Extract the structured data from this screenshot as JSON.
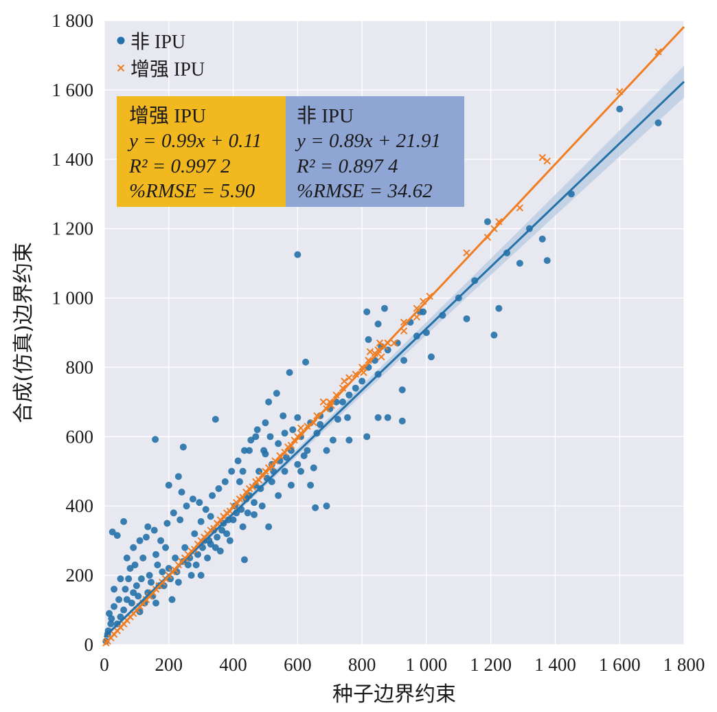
{
  "chart_data": {
    "type": "scatter",
    "xlabel": "种子边界约束",
    "ylabel": "合成(仿真)边界约束",
    "xlim": [
      0,
      1800
    ],
    "ylim": [
      0,
      1800
    ],
    "xticks": [
      0,
      200,
      400,
      600,
      800,
      1000,
      1200,
      1400,
      1600,
      1800
    ],
    "yticks": [
      0,
      200,
      400,
      600,
      800,
      1000,
      1200,
      1400,
      1600,
      1800
    ],
    "xtick_labels": [
      "0",
      "200",
      "400",
      "600",
      "800",
      "1 000",
      "1 200",
      "1 400",
      "1 600",
      "1 800"
    ],
    "ytick_labels": [
      "0",
      "200",
      "400",
      "600",
      "800",
      "1 000",
      "1 200",
      "1 400",
      "1 600",
      "1 800"
    ],
    "grid": true,
    "legend_position": "top-left",
    "colors": {
      "blue": "#2471a8",
      "orange": "#ef7d22",
      "background": "#e8e8f0",
      "box_orange": "#f2b81f",
      "box_blue": "#8fa6d4"
    },
    "series": [
      {
        "name": "非 IPU",
        "marker": "circle",
        "color": "#2471a8",
        "fit": {
          "slope": 0.89,
          "intercept": 21.91
        },
        "points": [
          [
            600,
            1125
          ],
          [
            158,
            592
          ],
          [
            345,
            650
          ],
          [
            1600,
            1545
          ],
          [
            1720,
            1505
          ],
          [
            1190,
            1220
          ],
          [
            1360,
            1170
          ],
          [
            1375,
            1108
          ],
          [
            1290,
            1100
          ],
          [
            1225,
            970
          ],
          [
            1125,
            940
          ],
          [
            1210,
            893
          ],
          [
            990,
            960
          ],
          [
            1015,
            830
          ],
          [
            970,
            890
          ],
          [
            930,
            820
          ],
          [
            870,
            970
          ],
          [
            815,
            960
          ],
          [
            820,
            880
          ],
          [
            850,
            925
          ],
          [
            860,
            860
          ],
          [
            925,
            735
          ],
          [
            925,
            645
          ],
          [
            850,
            780
          ],
          [
            850,
            655
          ],
          [
            880,
            655
          ],
          [
            815,
            600
          ],
          [
            755,
            655
          ],
          [
            725,
            650
          ],
          [
            710,
            590
          ],
          [
            690,
            400
          ],
          [
            655,
            395
          ],
          [
            640,
            460
          ],
          [
            620,
            545
          ],
          [
            670,
            635
          ],
          [
            600,
            655
          ],
          [
            610,
            500
          ],
          [
            580,
            460
          ],
          [
            575,
            785
          ],
          [
            625,
            815
          ],
          [
            535,
            725
          ],
          [
            510,
            700
          ],
          [
            450,
            560
          ],
          [
            430,
            500
          ],
          [
            510,
            340
          ],
          [
            465,
            375
          ],
          [
            435,
            245
          ],
          [
            245,
            570
          ],
          [
            230,
            485
          ],
          [
            200,
            460
          ],
          [
            60,
            355
          ],
          [
            25,
            325
          ],
          [
            40,
            315
          ],
          [
            135,
            340
          ],
          [
            240,
            440
          ],
          [
            300,
            355
          ],
          [
            330,
            290
          ],
          [
            360,
            270
          ],
          [
            120,
            250
          ],
          [
            80,
            220
          ],
          [
            180,
            210
          ],
          [
            30,
            160
          ],
          [
            70,
            130
          ],
          [
            100,
            170
          ],
          [
            150,
            140
          ],
          [
            50,
            80
          ],
          [
            20,
            60
          ],
          [
            110,
            95
          ],
          [
            160,
            120
          ],
          [
            260,
            230
          ],
          [
            300,
            200
          ],
          [
            340,
            330
          ],
          [
            380,
            320
          ],
          [
            400,
            360
          ],
          [
            420,
            470
          ],
          [
            440,
            420
          ],
          [
            470,
            460
          ],
          [
            490,
            400
          ],
          [
            520,
            470
          ],
          [
            540,
            430
          ],
          [
            560,
            610
          ],
          [
            580,
            560
          ],
          [
            600,
            520
          ],
          [
            630,
            560
          ],
          [
            660,
            610
          ],
          [
            700,
            680
          ],
          [
            740,
            700
          ],
          [
            760,
            720
          ],
          [
            800,
            760
          ],
          [
            820,
            800
          ],
          [
            760,
            590
          ],
          [
            690,
            560
          ],
          [
            650,
            510
          ],
          [
            470,
            600
          ],
          [
            500,
            640
          ],
          [
            555,
            660
          ],
          [
            210,
            130
          ],
          [
            230,
            180
          ],
          [
            270,
            200
          ],
          [
            320,
            250
          ],
          [
            350,
            310
          ],
          [
            280,
            320
          ],
          [
            190,
            280
          ],
          [
            160,
            260
          ],
          [
            140,
            200
          ],
          [
            90,
            150
          ],
          [
            60,
            100
          ],
          [
            40,
            60
          ],
          [
            10,
            30
          ],
          [
            15,
            90
          ],
          [
            30,
            110
          ],
          [
            75,
            190
          ],
          [
            95,
            230
          ],
          [
            115,
            190
          ],
          [
            135,
            150
          ],
          [
            170,
            170
          ],
          [
            200,
            220
          ],
          [
            220,
            250
          ],
          [
            250,
            280
          ],
          [
            290,
            260
          ],
          [
            310,
            300
          ],
          [
            330,
            370
          ],
          [
            370,
            350
          ],
          [
            390,
            300
          ],
          [
            410,
            380
          ],
          [
            430,
            340
          ],
          [
            450,
            430
          ],
          [
            480,
            500
          ],
          [
            500,
            550
          ],
          [
            520,
            520
          ],
          [
            540,
            580
          ],
          [
            560,
            500
          ],
          [
            585,
            620
          ],
          [
            610,
            600
          ],
          [
            640,
            640
          ],
          [
            670,
            660
          ],
          [
            720,
            700
          ],
          [
            780,
            740
          ],
          [
            840,
            820
          ],
          [
            880,
            850
          ],
          [
            910,
            870
          ],
          [
            950,
            930
          ],
          [
            980,
            960
          ],
          [
            1000,
            900
          ],
          [
            1050,
            950
          ],
          [
            1100,
            1000
          ],
          [
            1150,
            1050
          ],
          [
            1250,
            1130
          ],
          [
            1320,
            1200
          ],
          [
            1450,
            1300
          ],
          [
            5,
            10
          ],
          [
            12,
            40
          ],
          [
            22,
            75
          ],
          [
            45,
            130
          ],
          [
            65,
            160
          ],
          [
            85,
            120
          ],
          [
            105,
            140
          ],
          [
            125,
            120
          ],
          [
            145,
            180
          ],
          [
            165,
            230
          ],
          [
            185,
            170
          ],
          [
            205,
            190
          ],
          [
            225,
            210
          ],
          [
            245,
            240
          ],
          [
            265,
            250
          ],
          [
            285,
            230
          ],
          [
            305,
            280
          ],
          [
            325,
            300
          ],
          [
            345,
            280
          ],
          [
            365,
            330
          ],
          [
            385,
            360
          ],
          [
            405,
            400
          ],
          [
            425,
            390
          ],
          [
            445,
            380
          ],
          [
            465,
            410
          ],
          [
            485,
            450
          ],
          [
            505,
            480
          ],
          [
            525,
            500
          ],
          [
            545,
            530
          ],
          [
            565,
            540
          ],
          [
            50,
            190
          ],
          [
            70,
            250
          ],
          [
            90,
            280
          ],
          [
            110,
            300
          ],
          [
            130,
            310
          ],
          [
            155,
            330
          ],
          [
            175,
            300
          ],
          [
            195,
            350
          ],
          [
            215,
            380
          ],
          [
            235,
            360
          ],
          [
            255,
            400
          ],
          [
            275,
            420
          ],
          [
            295,
            410
          ],
          [
            315,
            390
          ],
          [
            335,
            430
          ],
          [
            355,
            450
          ],
          [
            375,
            470
          ],
          [
            395,
            500
          ],
          [
            415,
            530
          ],
          [
            435,
            560
          ],
          [
            455,
            590
          ],
          [
            475,
            620
          ],
          [
            495,
            560
          ],
          [
            515,
            600
          ]
        ]
      },
      {
        "name": "增强 IPU",
        "marker": "x",
        "color": "#ef7d22",
        "fit": {
          "slope": 0.99,
          "intercept": 0.11
        },
        "points": [
          [
            1720,
            1710
          ],
          [
            1600,
            1595
          ],
          [
            1360,
            1405
          ],
          [
            1375,
            1395
          ],
          [
            1290,
            1260
          ],
          [
            1225,
            1220
          ],
          [
            1210,
            1200
          ],
          [
            1190,
            1175
          ],
          [
            1125,
            1130
          ],
          [
            1010,
            1005
          ],
          [
            990,
            990
          ],
          [
            970,
            970
          ],
          [
            970,
            945
          ],
          [
            930,
            930
          ],
          [
            930,
            905
          ],
          [
            900,
            870
          ],
          [
            880,
            870
          ],
          [
            870,
            860
          ],
          [
            850,
            850
          ],
          [
            840,
            840
          ],
          [
            860,
            830
          ],
          [
            820,
            820
          ],
          [
            800,
            800
          ],
          [
            780,
            780
          ],
          [
            760,
            770
          ],
          [
            740,
            740
          ],
          [
            720,
            720
          ],
          [
            700,
            700
          ],
          [
            690,
            680
          ],
          [
            680,
            700
          ],
          [
            660,
            660
          ],
          [
            650,
            640
          ],
          [
            630,
            630
          ],
          [
            610,
            610
          ],
          [
            600,
            600
          ],
          [
            590,
            590
          ],
          [
            580,
            575
          ],
          [
            570,
            570
          ],
          [
            560,
            555
          ],
          [
            545,
            545
          ],
          [
            530,
            530
          ],
          [
            520,
            515
          ],
          [
            510,
            510
          ],
          [
            500,
            500
          ],
          [
            490,
            490
          ],
          [
            480,
            475
          ],
          [
            470,
            470
          ],
          [
            460,
            455
          ],
          [
            450,
            450
          ],
          [
            440,
            440
          ],
          [
            430,
            425
          ],
          [
            420,
            420
          ],
          [
            410,
            410
          ],
          [
            400,
            400
          ],
          [
            390,
            385
          ],
          [
            380,
            380
          ],
          [
            370,
            370
          ],
          [
            360,
            360
          ],
          [
            350,
            350
          ],
          [
            340,
            335
          ],
          [
            330,
            330
          ],
          [
            320,
            320
          ],
          [
            310,
            310
          ],
          [
            300,
            300
          ],
          [
            290,
            290
          ],
          [
            280,
            275
          ],
          [
            270,
            270
          ],
          [
            260,
            260
          ],
          [
            250,
            250
          ],
          [
            240,
            240
          ],
          [
            230,
            230
          ],
          [
            220,
            215
          ],
          [
            210,
            210
          ],
          [
            200,
            200
          ],
          [
            190,
            190
          ],
          [
            180,
            180
          ],
          [
            170,
            170
          ],
          [
            160,
            160
          ],
          [
            150,
            150
          ],
          [
            140,
            140
          ],
          [
            130,
            130
          ],
          [
            120,
            120
          ],
          [
            110,
            110
          ],
          [
            100,
            100
          ],
          [
            90,
            90
          ],
          [
            80,
            80
          ],
          [
            70,
            70
          ],
          [
            60,
            60
          ],
          [
            50,
            50
          ],
          [
            40,
            40
          ],
          [
            30,
            30
          ],
          [
            20,
            20
          ],
          [
            10,
            10
          ],
          [
            5,
            5
          ],
          [
            610,
            625
          ],
          [
            705,
            690
          ],
          [
            745,
            760
          ],
          [
            805,
            785
          ],
          [
            855,
            870
          ],
          [
            825,
            845
          ]
        ]
      }
    ],
    "annotations": [
      {
        "title": "增强 IPU",
        "equation": "y = 0.99x + 0.11",
        "r2": "R² = 0.997 2",
        "rmse": "%RMSE = 5.90"
      },
      {
        "title": "非 IPU",
        "equation": "y = 0.89x + 21.91",
        "r2": "R² = 0.897 4",
        "rmse": "%RMSE = 34.62"
      }
    ]
  }
}
